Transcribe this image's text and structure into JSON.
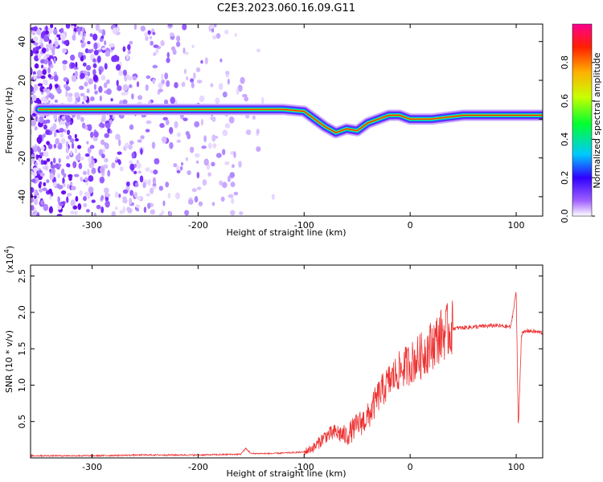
{
  "chart_data": [
    {
      "type": "heatmap",
      "title": "C2E3.2023.060.16.09.G11",
      "xlabel": "Height of straight line (km)",
      "ylabel": "Frequency (Hz)",
      "xlim": [
        -358,
        125
      ],
      "ylim": [
        -50,
        49
      ],
      "xticks": [
        -300,
        -200,
        -100,
        0,
        100
      ],
      "xtick_labels": [
        "-300",
        "-200",
        "-100",
        "0",
        "100"
      ],
      "yticks": [
        -40,
        -20,
        0,
        20,
        40
      ],
      "ytick_labels": [
        "-40",
        "-20",
        "0",
        "20",
        "40"
      ],
      "colorbar": {
        "label": "Normalized spectral amplitude",
        "range": [
          0,
          1
        ],
        "ticks": [
          0,
          0.2,
          0.4,
          0.6,
          0.8
        ],
        "tick_labels": [
          "0.0",
          "0.2",
          "0.4",
          "0.6",
          "0.8"
        ]
      },
      "ridge": {
        "description_free_values": true,
        "x": [
          -350,
          -300,
          -250,
          -200,
          -150,
          -120,
          -100,
          -90,
          -80,
          -70,
          -60,
          -50,
          -40,
          -30,
          -20,
          -10,
          0,
          20,
          50,
          80,
          100,
          125
        ],
        "y": [
          5,
          5,
          5,
          5,
          5,
          5,
          4,
          0,
          -4,
          -7,
          -5,
          -6,
          -2,
          0,
          2,
          2,
          0,
          0,
          2,
          2,
          2,
          2
        ]
      }
    },
    {
      "type": "line",
      "xlabel": "Height of straight line (km)",
      "ylabel": "SNR (10 * v/v)",
      "multiplier_label": "(x10",
      "multiplier_exp": "4",
      "multiplier_close": ")",
      "xlim": [
        -358,
        125
      ],
      "ylim": [
        0,
        2.65
      ],
      "xticks": [
        -300,
        -200,
        -100,
        0,
        100
      ],
      "xtick_labels": [
        "-300",
        "-200",
        "-100",
        "0",
        "100"
      ],
      "yticks": [
        0.5,
        1.0,
        1.5,
        2.0,
        2.5
      ],
      "ytick_labels": [
        "0.5",
        "1.0",
        "1.5",
        "2.0",
        "2.5"
      ],
      "color": "#ee3333",
      "series": [
        {
          "x": [
            -358,
            -300,
            -250,
            -200,
            -160,
            -155,
            -150,
            -130,
            -100,
            -90,
            -80,
            -70,
            -60,
            -50,
            -40,
            -30,
            -20,
            -10,
            0,
            10,
            20,
            30,
            40,
            60,
            80,
            95,
            100,
            102,
            105,
            110,
            125
          ],
          "y": [
            0.03,
            0.03,
            0.04,
            0.04,
            0.05,
            0.13,
            0.06,
            0.06,
            0.08,
            0.15,
            0.3,
            0.35,
            0.3,
            0.45,
            0.55,
            0.85,
            1.05,
            1.2,
            1.3,
            1.4,
            1.55,
            1.7,
            1.78,
            1.8,
            1.82,
            1.8,
            2.3,
            0.4,
            1.7,
            1.75,
            1.72
          ]
        }
      ]
    }
  ]
}
